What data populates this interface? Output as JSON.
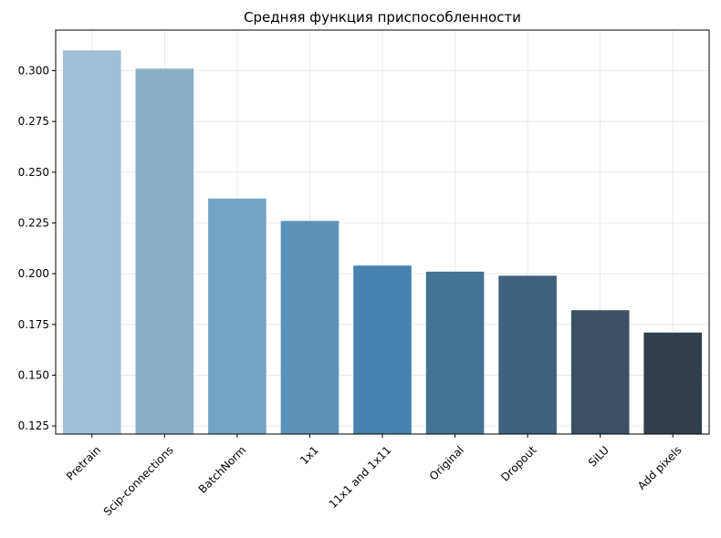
{
  "chart_data": {
    "type": "bar",
    "title": "Средняя функция приспособленности",
    "xlabel": "",
    "ylabel": "",
    "categories": [
      "Pretrain",
      "Scip-connections",
      "BatchNorm",
      "1x1",
      "11x1 and 1x11",
      "Original",
      "Dropout",
      "SiLU",
      "Add pixels"
    ],
    "values": [
      0.31,
      0.301,
      0.237,
      0.226,
      0.204,
      0.201,
      0.199,
      0.182,
      0.171
    ],
    "colors": [
      "#a2bfd7",
      "#89afc9",
      "#72a3c4",
      "#5d93bb",
      "#4683b1",
      "#437393",
      "#3e617d",
      "#3b5064",
      "#333f48"
    ],
    "ylim": [
      0.121,
      0.32
    ],
    "yticks": [
      0.125,
      0.15,
      0.175,
      0.2,
      0.225,
      0.25,
      0.275,
      0.3
    ],
    "ytick_labels": [
      "0.125",
      "0.150",
      "0.175",
      "0.200",
      "0.225",
      "0.250",
      "0.275",
      "0.300"
    ],
    "grid": true,
    "xtick_rotation_deg": 45
  }
}
